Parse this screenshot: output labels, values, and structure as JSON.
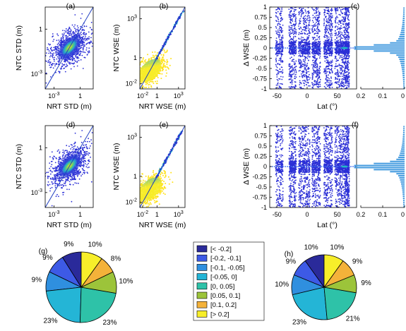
{
  "colors": {
    "scatter_dense_center": "#ffe21a",
    "scatter_mid": "#22b7c6",
    "scatter_sparse": "#2b2fd6",
    "identity_line": "#1f3fbf",
    "histogram": "#4a9ee0",
    "pie": [
      "#2a2a9a",
      "#3d5ae6",
      "#2f8fdf",
      "#24b5d6",
      "#2ec2a8",
      "#9cc43a",
      "#f4b23a",
      "#f7ee2a"
    ]
  },
  "chart_data": [
    {
      "id": "a",
      "panel_label": "(a)",
      "type": "scatter",
      "xlabel": "NRT STD (m)",
      "ylabel": "NTC STD (m)",
      "scale": "log",
      "xlim": [
        0.0001,
        30
      ],
      "ylim": [
        0.0001,
        30
      ],
      "xticks": [
        "10^-3",
        "1"
      ],
      "yticks": [
        "10^-3",
        "1"
      ],
      "identity_line": true
    },
    {
      "id": "b",
      "panel_label": "(b)",
      "type": "scatter",
      "xlabel": "NRT WSE (m)",
      "ylabel": "NTC WSE (m)",
      "scale": "log",
      "xlim": [
        0.004,
        8000
      ],
      "ylim": [
        0.004,
        8000
      ],
      "xticks": [
        "10^-2",
        "1",
        "10^3"
      ],
      "yticks": [
        "10^-2",
        "1",
        "10^3"
      ],
      "identity_line": true
    },
    {
      "id": "c",
      "panel_label": "(c)",
      "type": "scatter",
      "xlabel": "Lat (°)",
      "ylabel": "Δ WSE (m)",
      "xlim": [
        -62,
        82
      ],
      "ylim": [
        -1,
        1
      ],
      "xticks": [
        "-50",
        "0",
        "50"
      ],
      "yticks": [
        "-1",
        "-0.75",
        "-0.5",
        "-0.25",
        "0",
        "0.25",
        "0.5",
        "0.75",
        "1"
      ],
      "histogram": {
        "xlim": [
          0.2,
          0
        ],
        "xticks": [
          "0.2",
          "0.1",
          "0"
        ]
      }
    },
    {
      "id": "d",
      "panel_label": "(d)",
      "type": "scatter",
      "xlabel": "NRT STD (m)",
      "ylabel": "NTC STD (m)",
      "scale": "log",
      "xlim": [
        0.0001,
        30
      ],
      "ylim": [
        0.0001,
        30
      ],
      "xticks": [
        "10^-3",
        "1"
      ],
      "yticks": [
        "10^-3",
        "1"
      ],
      "identity_line": true
    },
    {
      "id": "e",
      "panel_label": "(e)",
      "type": "scatter",
      "xlabel": "NRT WSE (m)",
      "ylabel": "NTC WSE (m)",
      "scale": "log",
      "xlim": [
        0.004,
        8000
      ],
      "ylim": [
        0.004,
        8000
      ],
      "xticks": [
        "10^-2",
        "1",
        "10^3"
      ],
      "yticks": [
        "10^-2",
        "1",
        "10^3"
      ],
      "identity_line": true
    },
    {
      "id": "f",
      "panel_label": "(f)",
      "type": "scatter",
      "xlabel": "Lat (°)",
      "ylabel": "Δ WSE (m)",
      "xlim": [
        -62,
        82
      ],
      "ylim": [
        -1,
        1
      ],
      "xticks": [
        "-50",
        "0",
        "50"
      ],
      "yticks": [
        "-1",
        "-0.75",
        "-0.5",
        "-0.25",
        "0",
        "0.25",
        "0.5",
        "0.75",
        "1"
      ],
      "histogram": {
        "xlim": [
          0.2,
          0
        ],
        "xticks": [
          "0.2",
          "0.1",
          "0"
        ]
      }
    },
    {
      "id": "g",
      "panel_label": "(g)",
      "type": "pie",
      "categories": [
        "[< -0.2]",
        "[-0.2, -0.1]",
        "[-0.1, -0.05]",
        "[-0.05, 0]",
        "[0, 0.05]",
        "[0.05, 0.1]",
        "[0.1, 0.2]",
        "[> 0.2]"
      ],
      "values": [
        9,
        9,
        9,
        23,
        23,
        10,
        8,
        10
      ],
      "labels": [
        "9%",
        "9%",
        "9%",
        "23%",
        "23%",
        "10%",
        "8%",
        "10%"
      ]
    },
    {
      "id": "h",
      "panel_label": "(h)",
      "type": "pie",
      "categories": [
        "[< -0.2]",
        "[-0.2, -0.1]",
        "[-0.1, -0.05]",
        "[-0.05, 0]",
        "[0, 0.05]",
        "[0.05, 0.1]",
        "[0.1, 0.2]",
        "[> 0.2]"
      ],
      "values": [
        10,
        9,
        10,
        23,
        21,
        9,
        9,
        10
      ],
      "labels": [
        "10%",
        "9%",
        "10%",
        "23%",
        "21%",
        "9%",
        "9%",
        "10%"
      ]
    }
  ],
  "legend": {
    "entries": [
      "[< -0.2]",
      "[-0.2, -0.1]",
      "[-0.1, -0.05]",
      "[-0.05, 0]",
      "[0, 0.05]",
      "[0.05, 0.1]",
      "[0.1, 0.2]",
      "[> 0.2]"
    ]
  }
}
